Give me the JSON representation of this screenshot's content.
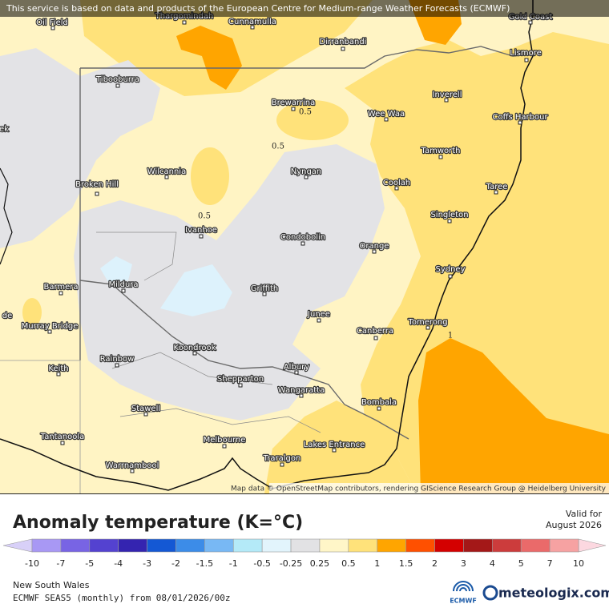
{
  "header": {
    "notice": "This service is based on data and products of the European Centre for Medium-range Weather Forecasts (ECMWF)"
  },
  "map": {
    "cities": [
      {
        "label": "Oil Field"
      },
      {
        "label": "Thargomindah"
      },
      {
        "label": "Cunnamulla"
      },
      {
        "label": "Gold Coast"
      },
      {
        "label": "Dirranbandi"
      },
      {
        "label": "Lismore"
      },
      {
        "label": "Tibooburra"
      },
      {
        "label": "Inverell"
      },
      {
        "label": "Brewarrina"
      },
      {
        "label": "Wee Waa"
      },
      {
        "label": "Coffs Harbour"
      },
      {
        "label": "Tamworth"
      },
      {
        "label": "Nyngan"
      },
      {
        "label": "Wilcannia"
      },
      {
        "label": "Broken Hill"
      },
      {
        "label": "Coolah"
      },
      {
        "label": "Taree"
      },
      {
        "label": "Singleton"
      },
      {
        "label": "Ivanhoe"
      },
      {
        "label": "Condobolin"
      },
      {
        "label": "Orange"
      },
      {
        "label": "Sydney"
      },
      {
        "label": "Barmera"
      },
      {
        "label": "Mildura"
      },
      {
        "label": "Griffith"
      },
      {
        "label": "Murray Bridge"
      },
      {
        "label": "Junee"
      },
      {
        "label": "Canberra"
      },
      {
        "label": "Tomerong"
      },
      {
        "label": "Koondrook"
      },
      {
        "label": "Rainbow"
      },
      {
        "label": "Albury"
      },
      {
        "label": "Keith"
      },
      {
        "label": "Shepparton"
      },
      {
        "label": "Wangaratta"
      },
      {
        "label": "Bombala"
      },
      {
        "label": "Stawell"
      },
      {
        "label": "Tantanoola"
      },
      {
        "label": "Melbourne"
      },
      {
        "label": "Lakes Entrance"
      },
      {
        "label": "Traralgon"
      },
      {
        "label": "Warrnambool"
      },
      {
        "label": "ek"
      },
      {
        "label": "de"
      }
    ],
    "contour_labels": [
      "0.5",
      "0.5",
      "0.5",
      "1"
    ],
    "attribution": "Map data © OpenStreetMap contributors, rendering GIScience Research Group @ Heidelberg University"
  },
  "legend": {
    "title": "Anomaly temperature (K=°C)",
    "valid_for": "Valid for",
    "valid_period": "August 2026",
    "ticks": [
      -10,
      -7,
      -5,
      -4,
      -3,
      -2,
      -1.5,
      -1,
      -0.5,
      -0.25,
      0.25,
      0.5,
      1,
      1.5,
      2,
      3,
      4,
      5,
      7,
      10
    ],
    "colors": [
      "#a898f4",
      "#7864e4",
      "#5442d0",
      "#3424b0",
      "#1458d4",
      "#3c8ce8",
      "#78b8f4",
      "#b4eaf8",
      "#e2f4fc",
      "#e2e2e4",
      "#fff6c8",
      "#ffe27a",
      "#ffa500",
      "#ff5000",
      "#d40000",
      "#a41818",
      "#cc3c3c",
      "#ea6a6a",
      "#f6a2a2"
    ],
    "under_color": "#d8d0f8",
    "over_color": "#fcd8e0"
  },
  "footer": {
    "region": "New South Wales",
    "model": "ECMWF SEAS5 (monthly) from 08/01/2026/00z",
    "ecmwf_logo": "ECMWF",
    "brand": "meteologix.com"
  }
}
